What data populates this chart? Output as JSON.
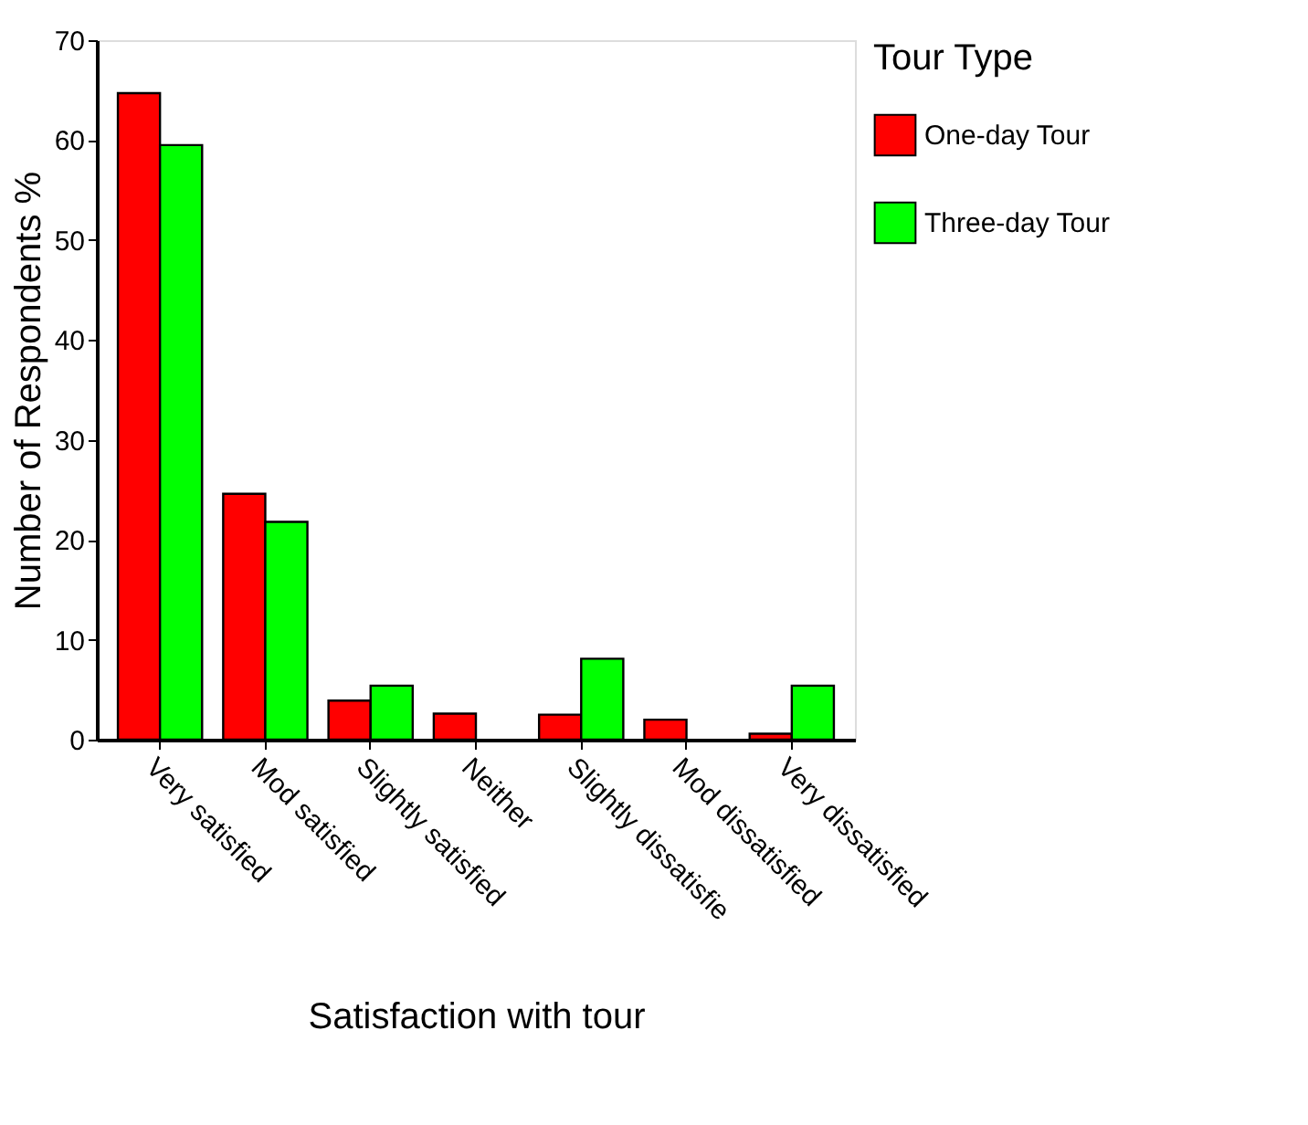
{
  "chart_data": {
    "type": "bar",
    "xlabel": "Satisfaction with tour",
    "ylabel": "Number of Respondents %",
    "legend_title": "Tour Type",
    "legend": "right",
    "categories": [
      "Very satisfied",
      "Mod satisfied",
      "Slightly satisfied",
      "Neither",
      "Slightly dissatisfie",
      "Mod dissatisfied",
      "Very dissatisfied"
    ],
    "series": [
      {
        "name": "One-day Tour",
        "color": "#ff0000",
        "values": [
          64.7,
          24.6,
          3.9,
          2.6,
          2.5,
          2.0,
          0.6
        ]
      },
      {
        "name": "Three-day Tour",
        "color": "#00ff00",
        "values": [
          59.5,
          21.8,
          5.4,
          null,
          8.1,
          null,
          5.4
        ]
      }
    ],
    "ylim": [
      0,
      70
    ],
    "yticks": [
      0,
      10,
      20,
      30,
      40,
      50,
      60,
      70
    ],
    "grid": false
  }
}
